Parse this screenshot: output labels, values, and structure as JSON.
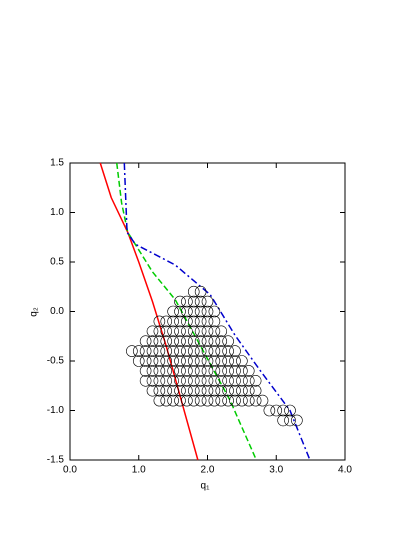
{
  "chart_data": {
    "type": "scatter",
    "xlabel": "q₁",
    "ylabel": "q₂",
    "xlim": [
      0,
      4
    ],
    "ylim": [
      -1.5,
      1.5
    ],
    "xticks": [
      {
        "value": 0,
        "label": "0.0"
      },
      {
        "value": 1,
        "label": "1.0"
      },
      {
        "value": 2,
        "label": "2.0"
      },
      {
        "value": 3,
        "label": "3.0"
      },
      {
        "value": 4,
        "label": "4.0"
      }
    ],
    "yticks": [
      {
        "value": -1.5,
        "label": "-1.5"
      },
      {
        "value": -1,
        "label": "-1.0"
      },
      {
        "value": -0.5,
        "label": "-0.5"
      },
      {
        "value": 0,
        "label": "0.0"
      },
      {
        "value": 0.5,
        "label": "0.5"
      },
      {
        "value": 1,
        "label": "1.0"
      },
      {
        "value": 1.5,
        "label": "1.5"
      }
    ],
    "series": [
      {
        "type": "line",
        "dash": "solid",
        "color": "#ff0000",
        "x": [
          0.44,
          0.6,
          0.84,
          1.0,
          1.2,
          1.4,
          1.6,
          1.86
        ],
        "y": [
          1.5,
          1.15,
          0.8,
          0.5,
          0.1,
          -0.35,
          -0.85,
          -1.5
        ]
      },
      {
        "type": "line",
        "dash": "dashed",
        "color": "#00cc00",
        "x": [
          0.68,
          0.75,
          0.84,
          1.2,
          1.53,
          1.9,
          2.33,
          2.71
        ],
        "y": [
          1.5,
          1.1,
          0.8,
          0.4,
          0.12,
          -0.35,
          -0.9,
          -1.5
        ]
      },
      {
        "type": "line",
        "dash": "dashdot",
        "color": "#0000cc",
        "x": [
          0.79,
          0.83,
          0.95,
          1.53,
          2.04,
          2.4,
          2.76,
          3.2,
          3.49
        ],
        "y": [
          1.5,
          0.8,
          0.68,
          0.47,
          0.17,
          -0.24,
          -0.59,
          -1.0,
          -1.5
        ]
      },
      {
        "type": "scatter",
        "color": "#000000",
        "x": [
          1.8,
          1.9,
          1.6,
          1.7,
          1.8,
          1.9,
          2.0,
          1.5,
          1.6,
          1.7,
          1.8,
          1.9,
          2.0,
          2.1,
          1.3,
          1.4,
          1.5,
          1.6,
          1.7,
          1.8,
          1.9,
          2.0,
          2.1,
          1.2,
          1.3,
          1.4,
          1.5,
          1.6,
          1.7,
          1.8,
          1.9,
          2.0,
          2.1,
          2.2,
          1.1,
          1.2,
          1.3,
          1.4,
          1.5,
          1.6,
          1.7,
          1.8,
          1.9,
          2.0,
          2.1,
          2.2,
          2.3,
          0.9,
          1.0,
          1.1,
          1.2,
          1.3,
          1.4,
          1.5,
          1.6,
          1.7,
          1.8,
          1.9,
          2.0,
          2.1,
          2.2,
          2.3,
          2.4,
          1.0,
          1.1,
          1.2,
          1.3,
          1.4,
          1.5,
          1.6,
          1.7,
          1.8,
          1.9,
          2.0,
          2.1,
          2.2,
          2.3,
          2.4,
          2.5,
          1.1,
          1.2,
          1.3,
          1.4,
          1.5,
          1.6,
          1.7,
          1.8,
          1.9,
          2.0,
          2.1,
          2.2,
          2.3,
          2.4,
          2.5,
          2.6,
          1.1,
          1.2,
          1.3,
          1.4,
          1.5,
          1.6,
          1.7,
          1.8,
          1.9,
          2.0,
          2.1,
          2.2,
          2.3,
          2.4,
          2.5,
          2.6,
          2.7,
          1.2,
          1.3,
          1.4,
          1.5,
          1.6,
          1.7,
          1.8,
          1.9,
          2.0,
          2.1,
          2.2,
          2.3,
          2.4,
          2.5,
          2.6,
          2.7,
          1.3,
          1.4,
          1.5,
          1.6,
          1.7,
          1.8,
          1.9,
          2.0,
          2.1,
          2.2,
          2.3,
          2.4,
          2.5,
          2.6,
          2.7,
          2.8,
          2.9,
          3.0,
          3.1,
          3.2,
          3.1,
          3.2,
          3.3
        ],
        "y": [
          0.2,
          0.2,
          0.1,
          0.1,
          0.1,
          0.1,
          0.1,
          0,
          0,
          0,
          0,
          0,
          0,
          0,
          -0.1,
          -0.1,
          -0.1,
          -0.1,
          -0.1,
          -0.1,
          -0.1,
          -0.1,
          -0.1,
          -0.2,
          -0.2,
          -0.2,
          -0.2,
          -0.2,
          -0.2,
          -0.2,
          -0.2,
          -0.2,
          -0.2,
          -0.2,
          -0.3,
          -0.3,
          -0.3,
          -0.3,
          -0.3,
          -0.3,
          -0.3,
          -0.3,
          -0.3,
          -0.3,
          -0.3,
          -0.3,
          -0.3,
          -0.4,
          -0.4,
          -0.4,
          -0.4,
          -0.4,
          -0.4,
          -0.4,
          -0.4,
          -0.4,
          -0.4,
          -0.4,
          -0.4,
          -0.4,
          -0.4,
          -0.4,
          -0.4,
          -0.5,
          -0.5,
          -0.5,
          -0.5,
          -0.5,
          -0.5,
          -0.5,
          -0.5,
          -0.5,
          -0.5,
          -0.5,
          -0.5,
          -0.5,
          -0.5,
          -0.5,
          -0.5,
          -0.6,
          -0.6,
          -0.6,
          -0.6,
          -0.6,
          -0.6,
          -0.6,
          -0.6,
          -0.6,
          -0.6,
          -0.6,
          -0.6,
          -0.6,
          -0.6,
          -0.6,
          -0.6,
          -0.7,
          -0.7,
          -0.7,
          -0.7,
          -0.7,
          -0.7,
          -0.7,
          -0.7,
          -0.7,
          -0.7,
          -0.7,
          -0.7,
          -0.7,
          -0.7,
          -0.7,
          -0.7,
          -0.7,
          -0.8,
          -0.8,
          -0.8,
          -0.8,
          -0.8,
          -0.8,
          -0.8,
          -0.8,
          -0.8,
          -0.8,
          -0.8,
          -0.8,
          -0.8,
          -0.8,
          -0.8,
          -0.8,
          -0.9,
          -0.9,
          -0.9,
          -0.9,
          -0.9,
          -0.9,
          -0.9,
          -0.9,
          -0.9,
          -0.9,
          -0.9,
          -0.9,
          -0.9,
          -0.9,
          -0.9,
          -0.9,
          -1.0,
          -1.0,
          -1.0,
          -1.0,
          -1.1,
          -1.1,
          -1.1
        ]
      }
    ]
  }
}
